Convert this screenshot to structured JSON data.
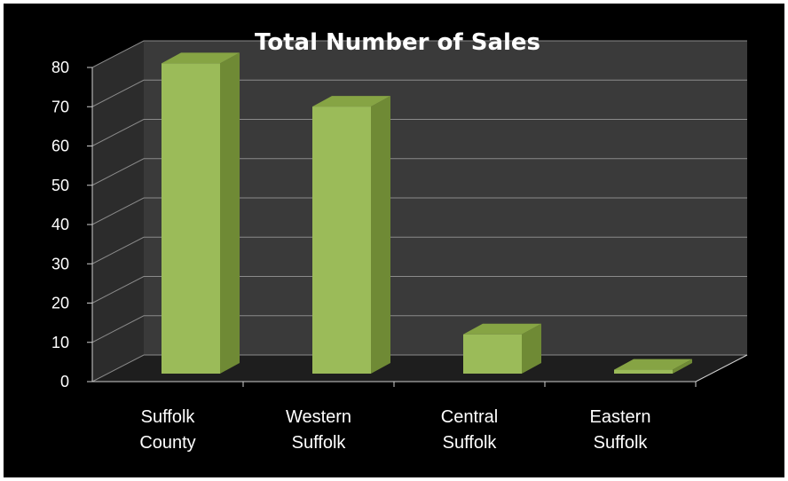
{
  "chart_data": {
    "type": "bar",
    "title": "Total Number of Sales",
    "categories": [
      [
        "Suffolk",
        "County"
      ],
      [
        "Western",
        "Suffolk"
      ],
      [
        "Central",
        "Suffolk"
      ],
      [
        "Eastern",
        "Suffolk"
      ]
    ],
    "values": [
      79,
      68,
      10,
      1
    ],
    "ylim": [
      0,
      80
    ],
    "yticks": [
      "0",
      "10",
      "20",
      "30",
      "40",
      "50",
      "60",
      "70",
      "80"
    ],
    "grid": true,
    "legend": "none",
    "colors": {
      "bar_front": "#9bbb59",
      "bar_side": "#6f8a35",
      "bar_top": "#86a444",
      "back_wall": "#3a3a3a",
      "floor": "#1e1e1e",
      "grid": "#8a8a8a",
      "background": "#000000"
    }
  }
}
